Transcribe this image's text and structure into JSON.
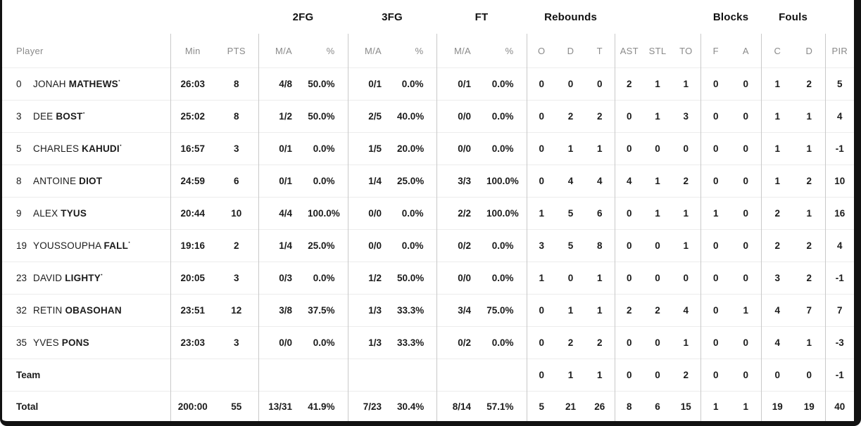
{
  "colors": {
    "frame_border": "#121212",
    "grid_vertical": "#c9c9c9",
    "grid_horizontal": "#ececec",
    "header_text": "#8a8a8a",
    "body_text": "#1b1b1b"
  },
  "starter_mark": "·",
  "header": {
    "groups": {
      "g2fg": "2FG",
      "g3fg": "3FG",
      "gft": "FT",
      "grebounds": "Rebounds",
      "gblocks": "Blocks",
      "gfouls": "Fouls"
    },
    "columns": [
      "Player",
      "Min",
      "PTS",
      "M/A",
      "%",
      "M/A",
      "%",
      "M/A",
      "%",
      "O",
      "D",
      "T",
      "AST",
      "STL",
      "TO",
      "F",
      "A",
      "C",
      "D",
      "PIR"
    ]
  },
  "players": [
    {
      "number": "0",
      "first": "JONAH",
      "last": "MATHEWS",
      "starter": true,
      "stats": [
        "26:03",
        "8",
        "4/8",
        "50.0%",
        "0/1",
        "0.0%",
        "0/1",
        "0.0%",
        "0",
        "0",
        "0",
        "2",
        "1",
        "1",
        "0",
        "0",
        "1",
        "2",
        "5"
      ]
    },
    {
      "number": "3",
      "first": "DEE",
      "last": "BOST",
      "starter": true,
      "stats": [
        "25:02",
        "8",
        "1/2",
        "50.0%",
        "2/5",
        "40.0%",
        "0/0",
        "0.0%",
        "0",
        "2",
        "2",
        "0",
        "1",
        "3",
        "0",
        "0",
        "1",
        "1",
        "4"
      ]
    },
    {
      "number": "5",
      "first": "CHARLES",
      "last": "KAHUDI",
      "starter": true,
      "stats": [
        "16:57",
        "3",
        "0/1",
        "0.0%",
        "1/5",
        "20.0%",
        "0/0",
        "0.0%",
        "0",
        "1",
        "1",
        "0",
        "0",
        "0",
        "0",
        "0",
        "1",
        "1",
        "-1"
      ]
    },
    {
      "number": "8",
      "first": "ANTOINE",
      "last": "DIOT",
      "starter": false,
      "stats": [
        "24:59",
        "6",
        "0/1",
        "0.0%",
        "1/4",
        "25.0%",
        "3/3",
        "100.0%",
        "0",
        "4",
        "4",
        "4",
        "1",
        "2",
        "0",
        "0",
        "1",
        "2",
        "10"
      ]
    },
    {
      "number": "9",
      "first": "ALEX",
      "last": "TYUS",
      "starter": false,
      "stats": [
        "20:44",
        "10",
        "4/4",
        "100.0%",
        "0/0",
        "0.0%",
        "2/2",
        "100.0%",
        "1",
        "5",
        "6",
        "0",
        "1",
        "1",
        "1",
        "0",
        "2",
        "1",
        "16"
      ]
    },
    {
      "number": "19",
      "first": "YOUSSOUPHA",
      "last": "FALL",
      "starter": true,
      "stats": [
        "19:16",
        "2",
        "1/4",
        "25.0%",
        "0/0",
        "0.0%",
        "0/2",
        "0.0%",
        "3",
        "5",
        "8",
        "0",
        "0",
        "1",
        "0",
        "0",
        "2",
        "2",
        "4"
      ]
    },
    {
      "number": "23",
      "first": "DAVID",
      "last": "LIGHTY",
      "starter": true,
      "stats": [
        "20:05",
        "3",
        "0/3",
        "0.0%",
        "1/2",
        "50.0%",
        "0/0",
        "0.0%",
        "1",
        "0",
        "1",
        "0",
        "0",
        "0",
        "0",
        "0",
        "3",
        "2",
        "-1"
      ]
    },
    {
      "number": "32",
      "first": "RETIN",
      "last": "OBASOHAN",
      "starter": false,
      "stats": [
        "23:51",
        "12",
        "3/8",
        "37.5%",
        "1/3",
        "33.3%",
        "3/4",
        "75.0%",
        "0",
        "1",
        "1",
        "2",
        "2",
        "4",
        "0",
        "1",
        "4",
        "7",
        "7"
      ]
    },
    {
      "number": "35",
      "first": "YVES",
      "last": "PONS",
      "starter": false,
      "stats": [
        "23:03",
        "3",
        "0/0",
        "0.0%",
        "1/3",
        "33.3%",
        "0/2",
        "0.0%",
        "0",
        "2",
        "2",
        "0",
        "0",
        "1",
        "0",
        "0",
        "4",
        "1",
        "-3"
      ]
    }
  ],
  "team_row": {
    "label": "Team",
    "stats": [
      "",
      "",
      "",
      "",
      "",
      "",
      "",
      "",
      "0",
      "1",
      "1",
      "0",
      "0",
      "2",
      "0",
      "0",
      "0",
      "0",
      "-1"
    ]
  },
  "total_row": {
    "label": "Total",
    "stats": [
      "200:00",
      "55",
      "13/31",
      "41.9%",
      "7/23",
      "30.4%",
      "8/14",
      "57.1%",
      "5",
      "21",
      "26",
      "8",
      "6",
      "15",
      "1",
      "1",
      "19",
      "19",
      "40"
    ]
  }
}
